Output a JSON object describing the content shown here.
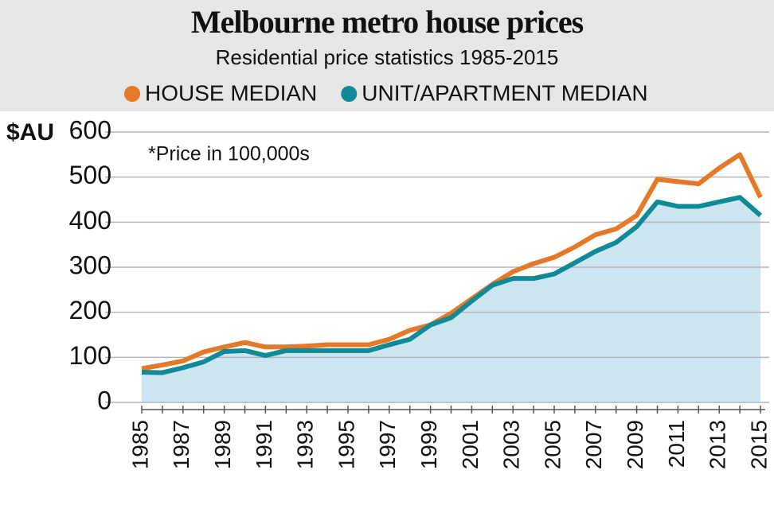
{
  "chart_data": {
    "type": "line",
    "title": "Melbourne metro house prices",
    "subtitle": "Residential price statistics 1985-2015",
    "y_label": "$AU",
    "annotation": "*Price in 100,000s",
    "x": [
      1985,
      1986,
      1987,
      1988,
      1989,
      1990,
      1991,
      1992,
      1993,
      1994,
      1995,
      1996,
      1997,
      1998,
      1999,
      2000,
      2001,
      2002,
      2003,
      2004,
      2005,
      2006,
      2007,
      2008,
      2009,
      2010,
      2011,
      2012,
      2013,
      2014,
      2015
    ],
    "series": [
      {
        "name": "HOUSE MEDIAN",
        "color": "#e5792a",
        "values": [
          75,
          83,
          92,
          112,
          123,
          133,
          123,
          123,
          125,
          128,
          128,
          128,
          140,
          160,
          172,
          198,
          230,
          262,
          290,
          308,
          322,
          345,
          372,
          385,
          415,
          495,
          490,
          485,
          520,
          550,
          455
        ]
      },
      {
        "name": "UNIT/APARTMENT MEDIAN",
        "color": "#0f8a96",
        "area_color": "#cde4f1",
        "values": [
          67,
          66,
          77,
          90,
          113,
          115,
          104,
          115,
          115,
          115,
          115,
          115,
          128,
          140,
          172,
          188,
          225,
          260,
          275,
          275,
          285,
          310,
          335,
          355,
          390,
          445,
          435,
          435,
          445,
          455,
          415
        ]
      }
    ],
    "xlim": [
      1985,
      2015
    ],
    "xticks": [
      1985,
      1987,
      1989,
      1991,
      1993,
      1995,
      1997,
      1999,
      2001,
      2003,
      2005,
      2007,
      2009,
      2011,
      2013,
      2015
    ],
    "ylim": [
      0,
      600
    ],
    "yticks": [
      0,
      100,
      200,
      300,
      400,
      500,
      600
    ],
    "grid": true
  }
}
